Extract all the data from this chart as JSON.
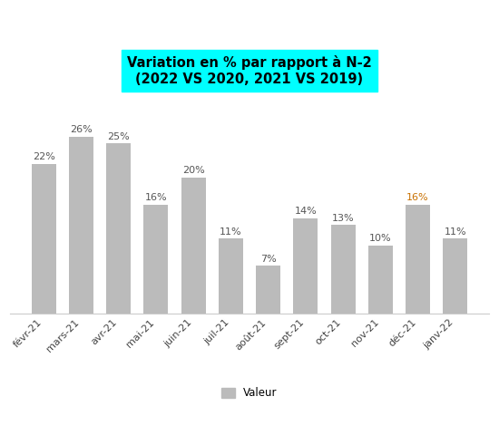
{
  "categories": [
    "févr-21",
    "mars-21",
    "avr-21",
    "mai-21",
    "juin-21",
    "juil-21",
    "août-21",
    "sept-21",
    "oct-21",
    "nov-21",
    "déc-21",
    "janv-22"
  ],
  "values": [
    22,
    26,
    25,
    16,
    20,
    11,
    7,
    14,
    13,
    10,
    16,
    11
  ],
  "bar_color": "#bbbbbb",
  "title_line1": "Variation en % par rapport à N-2",
  "title_line2": "(2022 VS 2020, 2021 VS 2019)",
  "title_bg_color": "#00ffff",
  "title_text_color": "#000000",
  "label_colors": [
    "#555555",
    "#555555",
    "#555555",
    "#555555",
    "#555555",
    "#555555",
    "#555555",
    "#555555",
    "#555555",
    "#555555",
    "#c87000",
    "#555555"
  ],
  "legend_label": "Valeur",
  "ylim": [
    0,
    32
  ],
  "bar_width": 0.65,
  "background_color": "#ffffff",
  "figsize": [
    5.5,
    4.8
  ],
  "dpi": 100
}
